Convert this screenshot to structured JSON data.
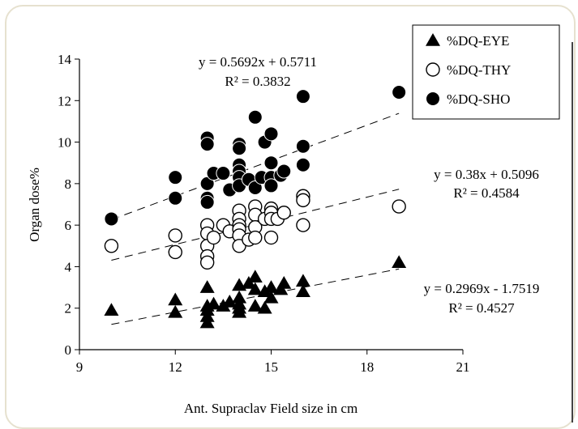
{
  "chart_data": {
    "type": "scatter",
    "xlabel": "Ant. Supraclav Field size in cm",
    "ylabel": "Organ dose%",
    "xlim": [
      9,
      21
    ],
    "ylim": [
      0,
      14
    ],
    "x_ticks": [
      9,
      12,
      15,
      18,
      21
    ],
    "y_ticks": [
      0,
      2,
      4,
      6,
      8,
      10,
      12,
      14
    ],
    "grid": false,
    "legend_position": "top-right",
    "series": [
      {
        "name": "%DQ-EYE",
        "marker": "triangle",
        "color": "#000000",
        "points": [
          [
            10,
            1.9
          ],
          [
            12,
            2.4
          ],
          [
            12,
            1.8
          ],
          [
            13,
            3.0
          ],
          [
            13,
            2.1
          ],
          [
            13,
            1.9
          ],
          [
            13,
            1.6
          ],
          [
            13,
            1.3
          ],
          [
            13.2,
            2.2
          ],
          [
            13.5,
            2.1
          ],
          [
            13.7,
            2.3
          ],
          [
            14,
            3.1
          ],
          [
            14,
            2.5
          ],
          [
            14,
            2.2
          ],
          [
            14,
            2.0
          ],
          [
            14,
            1.8
          ],
          [
            14.3,
            3.2
          ],
          [
            14.5,
            3.5
          ],
          [
            14.5,
            2.9
          ],
          [
            14.5,
            2.1
          ],
          [
            14.8,
            2.8
          ],
          [
            14.8,
            2.0
          ],
          [
            15,
            3.0
          ],
          [
            15,
            2.5
          ],
          [
            15.3,
            2.9
          ],
          [
            15.4,
            3.2
          ],
          [
            16,
            3.3
          ],
          [
            16,
            2.8
          ],
          [
            19,
            4.2
          ]
        ]
      },
      {
        "name": "%DQ-THY",
        "marker": "open-circle",
        "color": "#000000",
        "points": [
          [
            10,
            5.0
          ],
          [
            12,
            5.5
          ],
          [
            12,
            4.7
          ],
          [
            13,
            6.0
          ],
          [
            13,
            5.6
          ],
          [
            13,
            5.0
          ],
          [
            13,
            4.5
          ],
          [
            13,
            4.2
          ],
          [
            13.2,
            5.4
          ],
          [
            13.5,
            6.0
          ],
          [
            13.7,
            5.7
          ],
          [
            14,
            6.7
          ],
          [
            14,
            6.3
          ],
          [
            14,
            6.0
          ],
          [
            14,
            5.8
          ],
          [
            14,
            5.5
          ],
          [
            14,
            5.0
          ],
          [
            14.3,
            5.3
          ],
          [
            14.5,
            6.9
          ],
          [
            14.5,
            6.5
          ],
          [
            14.5,
            5.9
          ],
          [
            14.5,
            5.4
          ],
          [
            14.8,
            6.3
          ],
          [
            15,
            6.8
          ],
          [
            15,
            6.6
          ],
          [
            15,
            6.3
          ],
          [
            15,
            5.4
          ],
          [
            15.2,
            6.3
          ],
          [
            15.4,
            6.6
          ],
          [
            16,
            7.4
          ],
          [
            16,
            7.2
          ],
          [
            16,
            6.0
          ],
          [
            19,
            6.9
          ]
        ]
      },
      {
        "name": "%DQ-SHO",
        "marker": "filled-circle",
        "color": "#000000",
        "points": [
          [
            10,
            6.3
          ],
          [
            12,
            8.3
          ],
          [
            12,
            7.3
          ],
          [
            13,
            10.2
          ],
          [
            13,
            9.9
          ],
          [
            13,
            8.0
          ],
          [
            13,
            7.3
          ],
          [
            13,
            7.1
          ],
          [
            13.2,
            8.5
          ],
          [
            13.5,
            8.5
          ],
          [
            13.7,
            7.7
          ],
          [
            14,
            9.9
          ],
          [
            14,
            9.7
          ],
          [
            14,
            8.9
          ],
          [
            14,
            8.6
          ],
          [
            14,
            8.3
          ],
          [
            14,
            7.9
          ],
          [
            14.3,
            8.2
          ],
          [
            14.5,
            11.2
          ],
          [
            14.5,
            7.8
          ],
          [
            14.7,
            8.3
          ],
          [
            14.8,
            10.0
          ],
          [
            15,
            10.4
          ],
          [
            15,
            9.0
          ],
          [
            15,
            8.3
          ],
          [
            15,
            7.9
          ],
          [
            15.3,
            8.4
          ],
          [
            15.4,
            8.6
          ],
          [
            16,
            12.2
          ],
          [
            16,
            9.8
          ],
          [
            16,
            8.9
          ],
          [
            19,
            12.4
          ]
        ]
      }
    ],
    "trendlines": [
      {
        "series": "%DQ-SHO",
        "slope": 0.5692,
        "intercept": 0.5711,
        "equation": "y = 0.5692x + 0.5711",
        "r2": "R² = 0.3832"
      },
      {
        "series": "%DQ-THY",
        "slope": 0.38,
        "intercept": 0.5096,
        "equation": "y = 0.38x + 0.5096",
        "r2": "R² = 0.4584"
      },
      {
        "series": "%DQ-EYE",
        "slope": 0.2969,
        "intercept": -1.7519,
        "equation": "y = 0.2969x - 1.7519",
        "r2": "R² = 0.4527"
      }
    ]
  }
}
